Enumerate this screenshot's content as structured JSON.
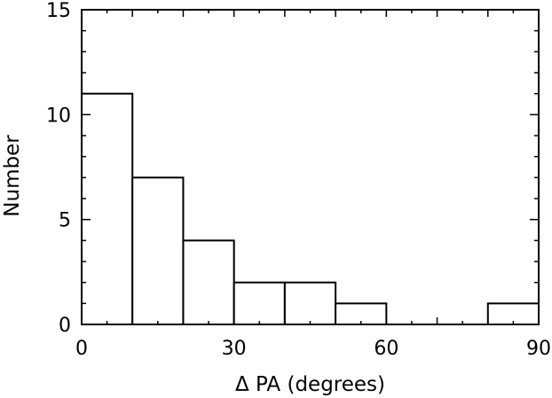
{
  "chart_data": {
    "type": "bar",
    "title": "",
    "xlabel": "Δ PA (degrees)",
    "ylabel": "Number",
    "xlim": [
      0,
      90
    ],
    "ylim": [
      0,
      15
    ],
    "bin_edges": [
      0,
      10,
      20,
      30,
      40,
      50,
      60,
      70,
      80,
      90
    ],
    "values": [
      11,
      7,
      4,
      2,
      2,
      1,
      0,
      0,
      1
    ],
    "x_ticks": [
      0,
      30,
      60,
      90
    ],
    "x_tick_labels": [
      "0",
      "30",
      "60",
      "90"
    ],
    "y_ticks": [
      0,
      5,
      10,
      15
    ],
    "y_tick_labels": [
      "0",
      "5",
      "10",
      "15"
    ],
    "grid": false,
    "legend": "none",
    "colors": {
      "bar_fill": "#ffffff",
      "bar_stroke": "#000000",
      "axis": "#000000"
    }
  }
}
